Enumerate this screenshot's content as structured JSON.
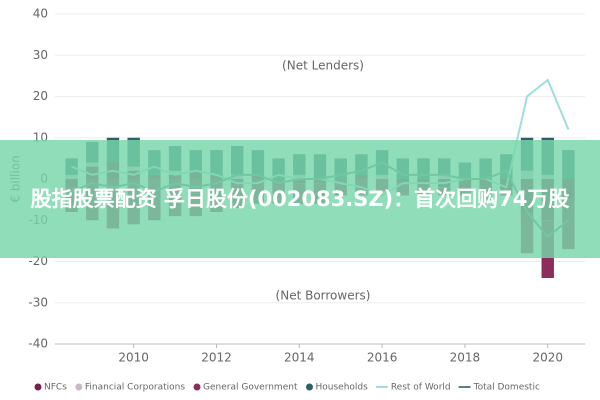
{
  "overlay_title": "股指股票配资 孚日股份(002083.SZ)：首次回购74万股",
  "chart_data": {
    "type": "bar",
    "y_label": "€ billion",
    "annotations": [
      "(Net Lenders)",
      "(Net Borrowers)"
    ],
    "x": [
      2008.5,
      2009,
      2009.5,
      2010,
      2010.5,
      2011,
      2011.5,
      2012,
      2012.5,
      2013,
      2013.5,
      2014,
      2014.5,
      2015,
      2015.5,
      2016,
      2016.5,
      2017,
      2017.5,
      2018,
      2018.5,
      2019,
      2019.5,
      2020,
      2020.5
    ],
    "xlim": [
      2008.1,
      2020.9
    ],
    "xticks": [
      2010,
      2012,
      2014,
      2016,
      2018,
      2020
    ],
    "ylim": [
      -40,
      40
    ],
    "yticks": [
      -40,
      -30,
      -20,
      -10,
      0,
      10,
      20,
      30,
      40
    ],
    "series": [
      {
        "name": "NFCs",
        "style": "bar",
        "color": "#7a1f4a",
        "values": [
          -2,
          3,
          4,
          2,
          1,
          1,
          2,
          1,
          0,
          1,
          0,
          -1,
          -1,
          0,
          1,
          0,
          -1,
          -2,
          -2,
          -3,
          -4,
          -3,
          -8,
          -10,
          -5
        ]
      },
      {
        "name": "Financial Corporations",
        "style": "bar",
        "color": "#c9b7c8",
        "values": [
          1,
          1,
          0,
          1,
          0,
          1,
          0,
          0,
          1,
          0,
          0,
          1,
          0,
          0,
          0,
          1,
          0,
          0,
          1,
          0,
          0,
          0,
          2,
          1,
          0
        ]
      },
      {
        "name": "General Government",
        "style": "bar",
        "color": "#8c2d5c",
        "values": [
          -6,
          -10,
          -12,
          -11,
          -10,
          -9,
          -9,
          -8,
          -7,
          -6,
          -6,
          -5,
          -5,
          -4,
          -4,
          -3,
          -3,
          -2,
          -2,
          -1,
          -1,
          -1,
          -10,
          -14,
          -12
        ]
      },
      {
        "name": "Households",
        "style": "bar",
        "color": "#2f5f68",
        "values": [
          4,
          5,
          6,
          7,
          6,
          6,
          5,
          6,
          7,
          6,
          5,
          5,
          6,
          5,
          5,
          6,
          5,
          5,
          4,
          4,
          5,
          6,
          8,
          9,
          7
        ]
      },
      {
        "name": "Rest of World",
        "style": "line",
        "color": "#9fdede",
        "values": [
          3,
          1,
          2,
          1,
          3,
          1,
          2,
          1,
          -1,
          -1,
          1,
          0,
          0,
          -1,
          -2,
          -4,
          -1,
          -1,
          -1,
          0,
          0,
          -2,
          20,
          24,
          12
        ]
      },
      {
        "name": "Total Domestic",
        "style": "line",
        "color": "#5b7f86",
        "values": [
          -3,
          -1,
          -2,
          -1,
          -3,
          -1,
          -2,
          -1,
          1,
          1,
          -1,
          0,
          0,
          1,
          2,
          4,
          1,
          1,
          1,
          0,
          0,
          2,
          -8,
          -14,
          -10
        ]
      }
    ]
  }
}
